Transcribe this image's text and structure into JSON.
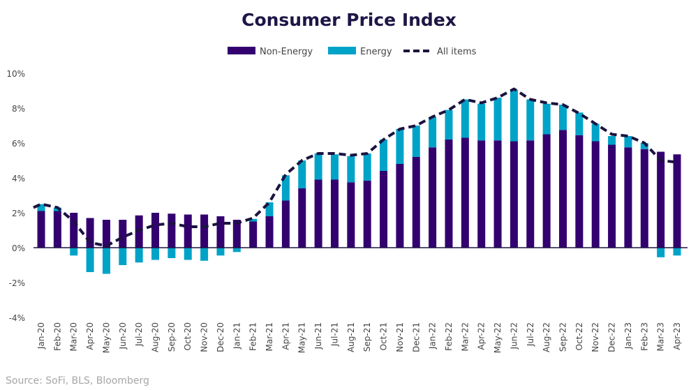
{
  "chart_data": {
    "type": "bar",
    "title": "Consumer Price Index",
    "source": "Source: SoFi, BLS, Bloomberg",
    "stacked": true,
    "ylim": [
      -4,
      10
    ],
    "yticks": [
      -4,
      -2,
      0,
      2,
      4,
      6,
      8,
      10
    ],
    "ytick_format": "percent",
    "grid": false,
    "legend_placement": "top",
    "colors": {
      "non_energy": "#33006f",
      "energy": "#00a3c8",
      "all_items": "#1b1340"
    },
    "categories": [
      "Jan-20",
      "Feb-20",
      "Mar-20",
      "Apr-20",
      "May-20",
      "Jun-20",
      "Jul-20",
      "Aug-20",
      "Sep-20",
      "Oct-20",
      "Nov-20",
      "Dec-20",
      "Jan-21",
      "Feb-21",
      "Mar-21",
      "Apr-21",
      "May-21",
      "Jun-21",
      "Jul-21",
      "Aug-21",
      "Sep-21",
      "Oct-21",
      "Nov-21",
      "Dec-21",
      "Jan-22",
      "Feb-22",
      "Mar-22",
      "Apr-22",
      "May-22",
      "Jun-22",
      "Jul-22",
      "Aug-22",
      "Sep-22",
      "Oct-22",
      "Nov-22",
      "Dec-22",
      "Jan-23",
      "Feb-23",
      "Mar-23",
      "Apr-23"
    ],
    "series": [
      {
        "name": "Non-Energy",
        "type": "bar",
        "values": [
          2.1,
          2.1,
          2.0,
          1.7,
          1.6,
          1.6,
          1.85,
          2.0,
          1.95,
          1.9,
          1.9,
          1.8,
          1.6,
          1.5,
          1.8,
          2.7,
          3.4,
          3.9,
          3.9,
          3.75,
          3.85,
          4.4,
          4.8,
          5.2,
          5.75,
          6.2,
          6.3,
          6.15,
          6.15,
          6.1,
          6.15,
          6.5,
          6.75,
          6.45,
          6.1,
          5.9,
          5.75,
          5.65,
          5.5,
          5.35
        ]
      },
      {
        "name": "Energy",
        "type": "bar",
        "values": [
          0.4,
          0.2,
          -0.45,
          -1.4,
          -1.5,
          -1.0,
          -0.85,
          -0.7,
          -0.6,
          -0.7,
          -0.75,
          -0.45,
          -0.25,
          0.15,
          0.8,
          1.45,
          1.6,
          1.5,
          1.45,
          1.5,
          1.55,
          1.8,
          2.0,
          1.8,
          1.75,
          1.7,
          2.2,
          2.1,
          2.45,
          2.95,
          2.35,
          1.75,
          1.45,
          1.3,
          1.0,
          0.5,
          0.65,
          0.35,
          -0.55,
          -0.45
        ]
      },
      {
        "name": "All items",
        "type": "line",
        "values": [
          2.5,
          2.3,
          1.5,
          0.3,
          0.1,
          0.6,
          1.0,
          1.3,
          1.4,
          1.2,
          1.2,
          1.4,
          1.4,
          1.7,
          2.6,
          4.2,
          5.0,
          5.4,
          5.4,
          5.3,
          5.4,
          6.2,
          6.8,
          7.0,
          7.5,
          7.9,
          8.5,
          8.3,
          8.6,
          9.1,
          8.5,
          8.3,
          8.2,
          7.7,
          7.1,
          6.5,
          6.4,
          6.0,
          5.0,
          4.9
        ]
      }
    ]
  }
}
